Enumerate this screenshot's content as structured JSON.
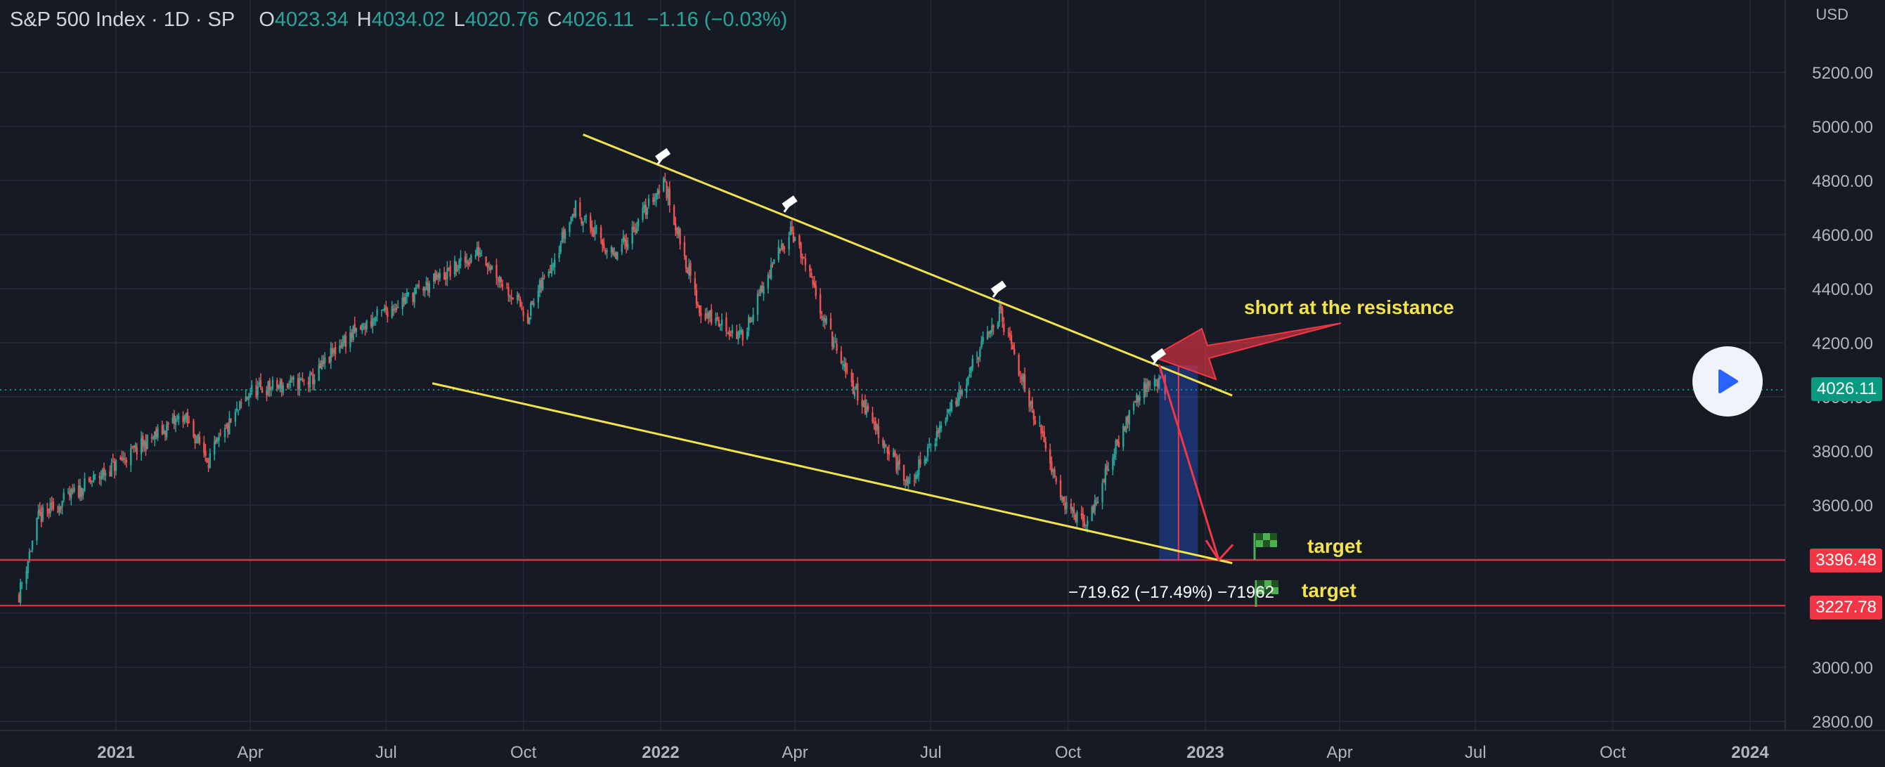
{
  "header": {
    "symbol": "S&P 500 Index · 1D · SP",
    "o_label": "O",
    "o_value": "4023.34",
    "h_label": "H",
    "h_value": "4034.02",
    "l_label": "L",
    "l_value": "4020.76",
    "c_label": "C",
    "c_value": "4026.11",
    "change": "−1.16 (−0.03%)"
  },
  "currency": "USD",
  "play_icon": "play-icon",
  "annotations": {
    "note_short": "short at the resistance",
    "target_1": "target",
    "target_2": "target",
    "measure": "−719.62 (−17.49%) −71962"
  },
  "price_badges": {
    "last": "4026.11",
    "target_1": "3396.48",
    "target_2": "3227.78"
  },
  "colors": {
    "background": "#161a25",
    "up": "#26a69a",
    "down": "#ef5350",
    "trendline": "#f2e24b",
    "target_line": "#f23645",
    "last_price": "#089981"
  },
  "chart_data": {
    "type": "candlestick",
    "title": "S&P 500 Index · 1D · SP",
    "ylim": [
      2720,
      5440
    ],
    "y_ticks": [
      2800,
      3000,
      3200,
      3400,
      3600,
      3800,
      4000,
      4200,
      4400,
      4600,
      4800,
      5000,
      5200
    ],
    "x_ticks": [
      {
        "label": "2021",
        "date": "2021-01-01"
      },
      {
        "label": "Apr",
        "date": "2021-04-01"
      },
      {
        "label": "Jul",
        "date": "2021-07-01"
      },
      {
        "label": "Oct",
        "date": "2021-10-01"
      },
      {
        "label": "2022",
        "date": "2022-01-01"
      },
      {
        "label": "Apr",
        "date": "2022-04-01"
      },
      {
        "label": "Jul",
        "date": "2022-07-01"
      },
      {
        "label": "Oct",
        "date": "2022-10-01"
      },
      {
        "label": "2023",
        "date": "2023-01-01"
      },
      {
        "label": "Apr",
        "date": "2023-04-01"
      },
      {
        "label": "Jul",
        "date": "2023-07-01"
      },
      {
        "label": "Oct",
        "date": "2023-10-01"
      },
      {
        "label": "2024",
        "date": "2024-01-01"
      }
    ],
    "price_path": [
      {
        "date": "2020-10-28",
        "close": 3270
      },
      {
        "date": "2020-11-10",
        "close": 3550
      },
      {
        "date": "2021-01-01",
        "close": 3750
      },
      {
        "date": "2021-02-15",
        "close": 3930
      },
      {
        "date": "2021-03-04",
        "close": 3770
      },
      {
        "date": "2021-04-01",
        "close": 4020
      },
      {
        "date": "2021-05-12",
        "close": 4060
      },
      {
        "date": "2021-06-01",
        "close": 4200
      },
      {
        "date": "2021-07-01",
        "close": 4320
      },
      {
        "date": "2021-08-15",
        "close": 4470
      },
      {
        "date": "2021-09-02",
        "close": 4540
      },
      {
        "date": "2021-10-04",
        "close": 4300
      },
      {
        "date": "2021-11-05",
        "close": 4700
      },
      {
        "date": "2021-12-01",
        "close": 4510
      },
      {
        "date": "2022-01-03",
        "close": 4800
      },
      {
        "date": "2022-01-27",
        "close": 4320
      },
      {
        "date": "2022-02-24",
        "close": 4220
      },
      {
        "date": "2022-03-29",
        "close": 4630
      },
      {
        "date": "2022-05-02",
        "close": 4120
      },
      {
        "date": "2022-06-16",
        "close": 3670
      },
      {
        "date": "2022-07-01",
        "close": 3820
      },
      {
        "date": "2022-08-16",
        "close": 4310
      },
      {
        "date": "2022-09-30",
        "close": 3590
      },
      {
        "date": "2022-10-13",
        "close": 3520
      },
      {
        "date": "2022-11-15",
        "close": 4000
      },
      {
        "date": "2022-12-01",
        "close": 4070
      },
      {
        "date": "2022-12-05",
        "close": 4026.11
      }
    ],
    "trendlines": [
      {
        "name": "resistance",
        "from": {
          "date": "2021-11-10",
          "price": 4970
        },
        "to": {
          "date": "2023-01-19",
          "price": 4005
        }
      },
      {
        "name": "support",
        "from": {
          "date": "2021-08-01",
          "price": 4050
        },
        "to": {
          "date": "2023-01-19",
          "price": 3385
        }
      }
    ],
    "projection": {
      "from": {
        "date": "2022-12-01",
        "price": 4120
      },
      "to": {
        "date": "2023-01-10",
        "price": 3396.48
      }
    },
    "measure_box": {
      "from_date": "2022-12-01",
      "to_date": "2022-12-27",
      "top": 4116,
      "bottom": 3396.48
    },
    "horizontal_levels": [
      3396.48,
      3227.78
    ],
    "last_price": 4026.11
  }
}
